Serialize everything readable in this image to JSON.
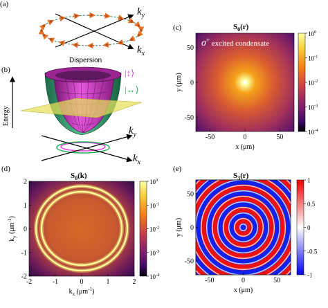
{
  "panels": {
    "a": {
      "label": "(a)",
      "ky": "k",
      "ky_sub": "y",
      "kx": "k",
      "kx_sub": "x",
      "caption": "Dispersion"
    },
    "b": {
      "label": "(b)",
      "energy": "Energy",
      "legend_upper": "|↕⟩",
      "legend_lower": "|↔⟩",
      "ky": "k",
      "ky_sub": "y",
      "kx": "k",
      "kx_sub": "x",
      "colors": {
        "upper": "#e040e0",
        "lower": "#22b060",
        "plane": "#e6e05a"
      }
    },
    "c": {
      "label": "(c)",
      "title": "S",
      "title_sub": "0",
      "title_arg": "(r)",
      "annotation_sigma": "σ",
      "annotation_sup": "+",
      "annotation_text": " excited condensate",
      "xlabel": "x (μm)",
      "ylabel": "y (μm)",
      "xticks": [
        "-50",
        "0",
        "50"
      ],
      "yticks": [
        "50",
        "0",
        "-50"
      ],
      "cbar_base": [
        "10",
        "10",
        "10",
        "10",
        "10"
      ],
      "cbar_exp": [
        "0",
        "-1",
        "-2",
        "-3",
        "-4"
      ]
    },
    "d": {
      "label": "(d)",
      "title": "S",
      "title_sub": "0",
      "title_arg": "(k)",
      "xlabel_k": "k",
      "xlabel_sub": "x",
      "xlabel_rest": " (μm",
      "xlabel_sup": "-1",
      "xlabel_close": ")",
      "ylabel_k": "k",
      "ylabel_sub": "y",
      "ylabel_rest": " (μm",
      "ylabel_sup": "-1",
      "ylabel_close": ")",
      "xticks": [
        "-2",
        "-1",
        "0",
        "1",
        "2"
      ],
      "yticks": [
        "2",
        "1",
        "0",
        "-1",
        "-2"
      ],
      "cbar_base": [
        "10",
        "10",
        "10",
        "10",
        "10"
      ],
      "cbar_exp": [
        "0",
        "-1",
        "-2",
        "-3",
        "-4"
      ]
    },
    "e": {
      "label": "(e)",
      "title": "S",
      "title_sub": "3",
      "title_arg": "(r)",
      "xlabel": "x (μm)",
      "ylabel": "y (μm)",
      "xticks": [
        "-50",
        "0",
        "50"
      ],
      "yticks": [
        "50",
        "0",
        "-50"
      ],
      "cbar_ticks": [
        "1",
        "0.5",
        "0",
        "-0.5",
        "-1"
      ]
    }
  },
  "colors": {
    "inferno_dark": "#140b34",
    "inferno_mid": "#b83655",
    "inferno_bright": "#fcffa4",
    "rdbu_red": "#ee1111",
    "rdbu_blue": "#1122ee",
    "arrow_orange": "#e8742a"
  }
}
